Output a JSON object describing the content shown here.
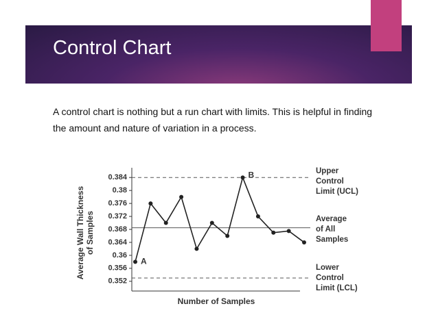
{
  "slide": {
    "title": "Control Chart",
    "text": [
      "A control chart is nothing but a run chart with limits. This is helpful in finding",
      "the amount and nature of variation in a process."
    ]
  },
  "chart_data": {
    "type": "line",
    "ylabel": [
      "Average Wall Thickness",
      "of Samples"
    ],
    "xlabel": "Number of Samples",
    "values": [
      0.358,
      0.376,
      0.37,
      0.378,
      0.362,
      0.37,
      0.366,
      0.384,
      0.372,
      0.367,
      0.3675,
      0.364
    ],
    "color": "#222222",
    "ylim": [
      0.349,
      0.387
    ],
    "yticks": [
      0.352,
      0.356,
      0.36,
      0.364,
      0.368,
      0.372,
      0.376,
      0.38,
      0.384
    ],
    "limits": [
      {
        "label": [
          "Upper",
          "Control",
          "Limit (UCL)"
        ],
        "value": 0.384,
        "style": "dashed"
      },
      {
        "label": [
          "Average",
          "of All",
          "Samples"
        ],
        "value": 0.3685,
        "style": "solid"
      },
      {
        "label": [
          "Lower",
          "Control",
          "Limit (LCL)"
        ],
        "value": 0.353,
        "style": "dashed"
      }
    ],
    "annotations": [
      {
        "text": "A",
        "index": 0
      },
      {
        "text": "B",
        "index": 7
      }
    ]
  }
}
